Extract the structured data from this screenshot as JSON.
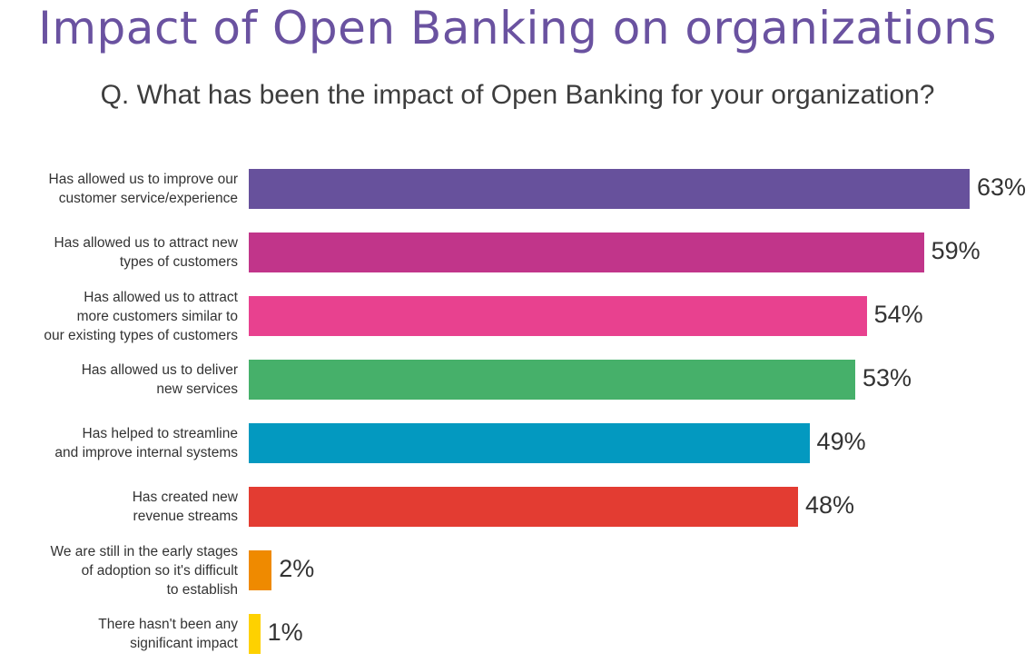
{
  "chart_data": {
    "type": "bar",
    "orientation": "horizontal",
    "title": "Impact of Open Banking on organizations",
    "subtitle": "Q. What has been the impact of Open Banking for your organization?",
    "categories": [
      "Has allowed us to improve our customer service/experience",
      "Has allowed us to attract new types of customers",
      "Has allowed us to attract more customers similar to our existing types of customers",
      "Has allowed us to deliver new services",
      "Has helped to streamline and improve internal systems",
      "Has created new revenue streams",
      "We are still in the early stages of adoption so it's difficult to establish",
      "There hasn't been any significant impact"
    ],
    "category_lines": [
      [
        "Has allowed us to improve our",
        "customer service/experience"
      ],
      [
        "Has allowed us to attract new",
        "types of customers"
      ],
      [
        "Has allowed us to attract",
        "more customers similar to",
        "our existing types of customers"
      ],
      [
        "Has allowed us to deliver",
        "new services"
      ],
      [
        "Has helped to streamline",
        "and improve internal systems"
      ],
      [
        "Has created new",
        "revenue streams"
      ],
      [
        "We are still in the early stages",
        "of adoption so it's difficult",
        "to establish"
      ],
      [
        "There hasn't been any",
        "significant impact"
      ]
    ],
    "values": [
      63,
      59,
      54,
      53,
      49,
      48,
      2,
      1
    ],
    "value_labels": [
      "63%",
      "59%",
      "54%",
      "53%",
      "49%",
      "48%",
      "2%",
      "1%"
    ],
    "colors": [
      "#67519c",
      "#c1358a",
      "#e8418f",
      "#46b06a",
      "#0399c0",
      "#e33c32",
      "#ef8a00",
      "#fed100"
    ],
    "xlim": [
      0,
      100
    ],
    "grid": false,
    "legend": "none"
  }
}
